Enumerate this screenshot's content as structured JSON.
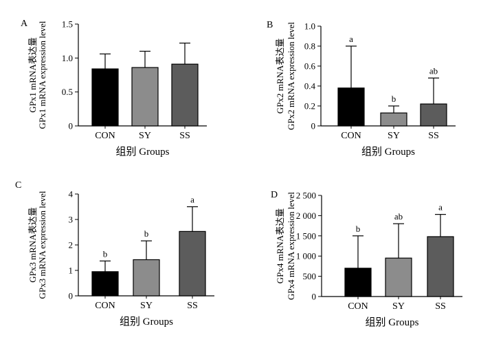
{
  "x_categories": [
    "CON",
    "SY",
    "SS"
  ],
  "x_label": "组别 Groups",
  "bar_colors": [
    "#000000",
    "#8c8c8c",
    "#5c5c5c"
  ],
  "chart_data": [
    {
      "panel": "A",
      "type": "bar",
      "ylabel_line1": "GPx1 mRNA表达量",
      "ylabel_line2": "GPx1 mRNA expression level",
      "ylim": [
        0,
        1.5
      ],
      "yticks": [
        0,
        0.5,
        1.0,
        1.5
      ],
      "ytick_labels": [
        "0",
        "0.5",
        "1.0",
        "1.5"
      ],
      "values": [
        0.84,
        0.86,
        0.91
      ],
      "errors": [
        0.22,
        0.24,
        0.31
      ],
      "sig_labels": [
        "",
        "",
        ""
      ]
    },
    {
      "panel": "B",
      "type": "bar",
      "ylabel_line1": "GPx2 mRNA表达量",
      "ylabel_line2": "GPx2 mRNA expression level",
      "ylim": [
        0,
        1.0
      ],
      "yticks": [
        0,
        0.2,
        0.4,
        0.6,
        0.8,
        1.0
      ],
      "ytick_labels": [
        "0",
        "0.2",
        "0.4",
        "0.6",
        "0.8",
        "1.0"
      ],
      "values": [
        0.38,
        0.13,
        0.22
      ],
      "errors": [
        0.42,
        0.07,
        0.26
      ],
      "sig_labels": [
        "a",
        "b",
        "ab"
      ]
    },
    {
      "panel": "C",
      "type": "bar",
      "ylabel_line1": "GPx3 mRNA表达量",
      "ylabel_line2": "GPx3 mRNA expression level",
      "ylim": [
        0,
        4
      ],
      "yticks": [
        0,
        1,
        2,
        3,
        4
      ],
      "ytick_labels": [
        "0",
        "1",
        "2",
        "3",
        "4"
      ],
      "values": [
        0.95,
        1.42,
        2.53
      ],
      "errors": [
        0.42,
        0.74,
        0.97
      ],
      "sig_labels": [
        "b",
        "b",
        "a"
      ]
    },
    {
      "panel": "D",
      "type": "bar",
      "ylabel_line1": "GPx4 mRNA表达量",
      "ylabel_line2": "GPx4 mRNA expression level",
      "ylim": [
        0,
        2500
      ],
      "yticks": [
        0,
        500,
        1000,
        1500,
        2000,
        2500
      ],
      "ytick_labels": [
        "0",
        "500",
        "1 000",
        "1 500",
        "2 000",
        "2 500"
      ],
      "values": [
        700,
        950,
        1480
      ],
      "errors": [
        800,
        850,
        550
      ],
      "sig_labels": [
        "b",
        "ab",
        "a"
      ]
    }
  ]
}
